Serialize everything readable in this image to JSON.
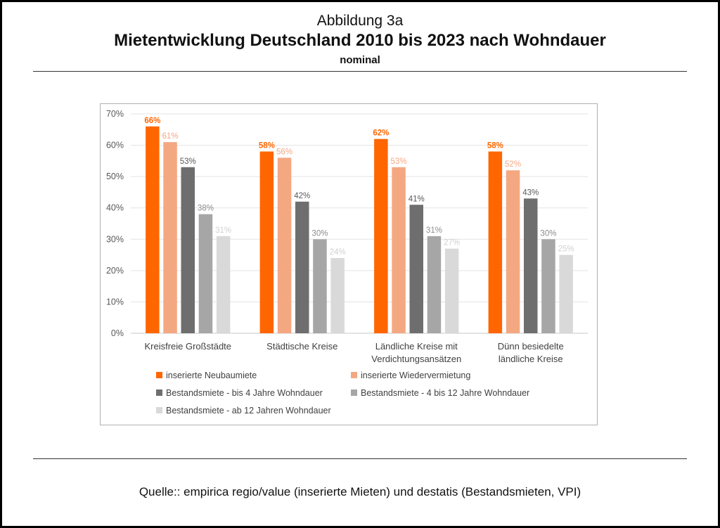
{
  "figure": {
    "supertitle": "Abbildung 3a",
    "title": "Mietentwicklung Deutschland 2010 bis 2023 nach Wohndauer",
    "subtitle": "nominal",
    "source": "Quelle:: empirica regio/value (inserierte Mieten) und destatis (Bestandsmieten, VPI)"
  },
  "chart_data": {
    "type": "bar",
    "title": "Mietentwicklung Deutschland 2010 bis 2023 nach Wohndauer",
    "categories": [
      [
        "Kreisfreie Großstädte"
      ],
      [
        "Städtische Kreise"
      ],
      [
        "Ländliche Kreise mit",
        "Verdichtungsansätzen"
      ],
      [
        "Dünn besiedelte",
        "ländliche Kreise"
      ]
    ],
    "series": [
      {
        "name": "inserierte Neubaumiete",
        "color": "#FF6600",
        "values": [
          66,
          58,
          62,
          58
        ],
        "labels": [
          "66%",
          "58%",
          "62%",
          "58%"
        ]
      },
      {
        "name": "inserierte Wiedervermietung",
        "color": "#F4A882",
        "values": [
          61,
          56,
          53,
          52
        ],
        "labels": [
          "61%",
          "56%",
          "53%",
          "52%"
        ]
      },
      {
        "name": "Bestandsmiete - bis 4 Jahre Wohndauer",
        "color": "#6E6E6E",
        "values": [
          53,
          42,
          41,
          43
        ],
        "labels": [
          "53%",
          "42%",
          "41%",
          "43%"
        ]
      },
      {
        "name": "Bestandsmiete - 4 bis 12 Jahre Wohndauer",
        "color": "#A6A6A6",
        "values": [
          38,
          30,
          31,
          30
        ],
        "labels": [
          "38%",
          "30%",
          "31%",
          "30%"
        ]
      },
      {
        "name": "Bestandsmiete - ab 12 Jahren Wohndauer",
        "color": "#D9D9D9",
        "values": [
          31,
          24,
          27,
          25
        ],
        "labels": [
          "31%",
          "24%",
          "27%",
          "25%"
        ]
      }
    ],
    "yticks": [
      "0%",
      "10%",
      "20%",
      "30%",
      "40%",
      "50%",
      "60%",
      "70%"
    ],
    "ylim": [
      0,
      70
    ],
    "grid": true,
    "legend": "bottom"
  }
}
